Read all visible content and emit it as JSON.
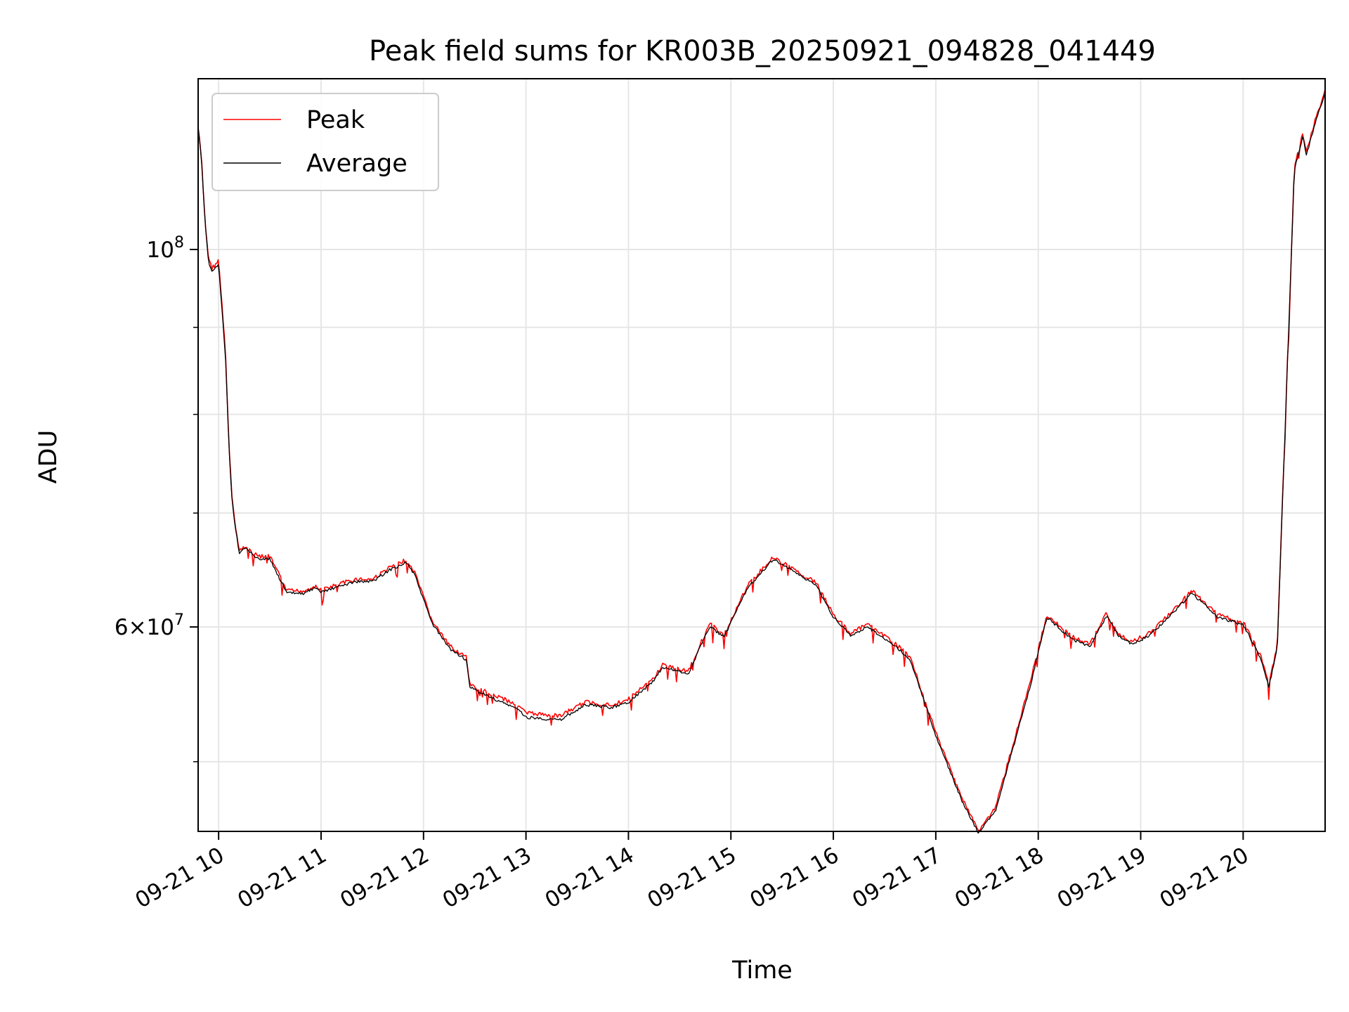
{
  "chart_data": {
    "type": "line",
    "title": "Peak field sums for KR003B_20250921_094828_041449",
    "xlabel": "Time",
    "ylabel": "ADU",
    "y_scale": "log",
    "ylim": [
      45500000,
      126000000
    ],
    "xlim": [
      "2025-09-21 09:48",
      "2025-09-21 20:48"
    ],
    "grid": true,
    "legend_position": "upper-left",
    "x_tick_labels": [
      "09-21 10",
      "09-21 11",
      "09-21 12",
      "09-21 13",
      "09-21 14",
      "09-21 15",
      "09-21 16",
      "09-21 17",
      "09-21 18",
      "09-21 19",
      "09-21 20"
    ],
    "x_ticks": [
      "2025-09-21 10:00",
      "2025-09-21 11:00",
      "2025-09-21 12:00",
      "2025-09-21 13:00",
      "2025-09-21 14:00",
      "2025-09-21 15:00",
      "2025-09-21 16:00",
      "2025-09-21 17:00",
      "2025-09-21 18:00",
      "2025-09-21 19:00",
      "2025-09-21 20:00"
    ],
    "y_major_ticks": [
      {
        "value": 100000000,
        "base": "10",
        "exp": "8"
      },
      {
        "value": 60000000,
        "mant": "6",
        "base": "10",
        "exp": "7"
      }
    ],
    "y_minor_ticks": [
      50000000,
      70000000,
      80000000,
      90000000
    ],
    "series": [
      {
        "name": "Peak",
        "color": "#ff0000",
        "x": [
          "2025-09-21 09:48",
          "2025-09-21 09:50",
          "2025-09-21 09:52",
          "2025-09-21 09:54",
          "2025-09-21 09:56",
          "2025-09-21 10:00",
          "2025-09-21 10:04",
          "2025-09-21 10:06",
          "2025-09-21 10:08",
          "2025-09-21 10:12",
          "2025-09-21 10:16",
          "2025-09-21 10:20",
          "2025-09-21 10:24",
          "2025-09-21 10:30",
          "2025-09-21 10:40",
          "2025-09-21 10:50",
          "2025-09-21 10:56",
          "2025-09-21 11:00",
          "2025-09-21 11:20",
          "2025-09-21 11:30",
          "2025-09-21 11:40",
          "2025-09-21 11:50",
          "2025-09-21 11:55",
          "2025-09-21 12:05",
          "2025-09-21 12:15",
          "2025-09-21 12:25",
          "2025-09-21 12:27",
          "2025-09-21 12:40",
          "2025-09-21 12:55",
          "2025-09-21 13:00",
          "2025-09-21 13:20",
          "2025-09-21 13:35",
          "2025-09-21 13:50",
          "2025-09-21 14:00",
          "2025-09-21 14:15",
          "2025-09-21 14:20",
          "2025-09-21 14:35",
          "2025-09-21 14:45",
          "2025-09-21 14:48",
          "2025-09-21 14:56",
          "2025-09-21 15:10",
          "2025-09-21 15:25",
          "2025-09-21 15:35",
          "2025-09-21 15:50",
          "2025-09-21 16:00",
          "2025-09-21 16:10",
          "2025-09-21 16:20",
          "2025-09-21 16:35",
          "2025-09-21 16:45",
          "2025-09-21 17:00",
          "2025-09-21 17:15",
          "2025-09-21 17:25",
          "2025-09-21 17:35",
          "2025-09-21 17:55",
          "2025-09-21 18:05",
          "2025-09-21 18:20",
          "2025-09-21 18:30",
          "2025-09-21 18:40",
          "2025-09-21 18:47",
          "2025-09-21 18:55",
          "2025-09-21 19:05",
          "2025-09-21 19:15",
          "2025-09-21 19:30",
          "2025-09-21 19:45",
          "2025-09-21 20:00",
          "2025-09-21 20:10",
          "2025-09-21 20:15",
          "2025-09-21 20:20",
          "2025-09-21 20:30",
          "2025-09-21 20:35",
          "2025-09-21 20:37",
          "2025-09-21 20:42",
          "2025-09-21 20:48"
        ],
        "y": [
          118000000,
          113000000,
          104000000,
          99000000,
          97500000,
          98500000,
          87000000,
          77000000,
          71000000,
          66500000,
          67000000,
          66300000,
          66000000,
          66000000,
          63000000,
          63000000,
          63400000,
          63100000,
          64000000,
          64000000,
          65000000,
          65700000,
          64500000,
          60500000,
          58500000,
          57600000,
          55500000,
          54800000,
          54000000,
          53400000,
          53200000,
          54200000,
          54000000,
          54400000,
          56000000,
          57000000,
          56500000,
          59500000,
          60200000,
          59400000,
          63500000,
          66000000,
          65000000,
          63700000,
          61000000,
          59500000,
          60200000,
          58800000,
          57600000,
          52000000,
          47700000,
          45500000,
          47000000,
          55500000,
          61000000,
          59200000,
          58600000,
          61100000,
          59500000,
          58800000,
          59500000,
          60800000,
          63000000,
          61000000,
          60400000,
          57800000,
          55500000,
          58500000,
          112000000,
          117000000,
          114000000,
          119000000,
          124000000
        ]
      },
      {
        "name": "Average",
        "color": "#000000",
        "x": [
          "2025-09-21 09:48",
          "2025-09-21 09:50",
          "2025-09-21 09:52",
          "2025-09-21 09:54",
          "2025-09-21 09:56",
          "2025-09-21 10:00",
          "2025-09-21 10:04",
          "2025-09-21 10:06",
          "2025-09-21 10:08",
          "2025-09-21 10:12",
          "2025-09-21 10:16",
          "2025-09-21 10:20",
          "2025-09-21 10:24",
          "2025-09-21 10:30",
          "2025-09-21 10:40",
          "2025-09-21 10:50",
          "2025-09-21 10:56",
          "2025-09-21 11:00",
          "2025-09-21 11:20",
          "2025-09-21 11:30",
          "2025-09-21 11:40",
          "2025-09-21 11:50",
          "2025-09-21 11:55",
          "2025-09-21 12:05",
          "2025-09-21 12:15",
          "2025-09-21 12:25",
          "2025-09-21 12:27",
          "2025-09-21 12:40",
          "2025-09-21 12:55",
          "2025-09-21 13:00",
          "2025-09-21 13:20",
          "2025-09-21 13:35",
          "2025-09-21 13:50",
          "2025-09-21 14:00",
          "2025-09-21 14:15",
          "2025-09-21 14:20",
          "2025-09-21 14:35",
          "2025-09-21 14:45",
          "2025-09-21 14:48",
          "2025-09-21 14:56",
          "2025-09-21 15:10",
          "2025-09-21 15:25",
          "2025-09-21 15:35",
          "2025-09-21 15:50",
          "2025-09-21 16:00",
          "2025-09-21 16:10",
          "2025-09-21 16:20",
          "2025-09-21 16:35",
          "2025-09-21 16:45",
          "2025-09-21 17:00",
          "2025-09-21 17:15",
          "2025-09-21 17:25",
          "2025-09-21 17:35",
          "2025-09-21 17:55",
          "2025-09-21 18:05",
          "2025-09-21 18:20",
          "2025-09-21 18:30",
          "2025-09-21 18:40",
          "2025-09-21 18:47",
          "2025-09-21 18:55",
          "2025-09-21 19:05",
          "2025-09-21 19:15",
          "2025-09-21 19:30",
          "2025-09-21 19:45",
          "2025-09-21 20:00",
          "2025-09-21 20:10",
          "2025-09-21 20:15",
          "2025-09-21 20:20",
          "2025-09-21 20:30",
          "2025-09-21 20:35",
          "2025-09-21 20:37",
          "2025-09-21 20:42",
          "2025-09-21 20:48"
        ],
        "y": [
          118000000,
          113000000,
          104000000,
          98500000,
          97000000,
          98000000,
          86500000,
          76800000,
          70800000,
          66300000,
          66800000,
          66100000,
          65800000,
          65800000,
          62800000,
          62800000,
          63200000,
          62900000,
          63800000,
          63800000,
          64800000,
          65500000,
          64300000,
          60300000,
          58300000,
          57400000,
          55300000,
          54500000,
          53700000,
          53100000,
          52900000,
          54000000,
          53800000,
          54200000,
          55800000,
          56800000,
          56300000,
          59300000,
          60000000,
          59200000,
          63300000,
          65800000,
          64800000,
          63500000,
          60800000,
          59300000,
          60000000,
          58600000,
          57400000,
          51800000,
          47500000,
          45400000,
          46800000,
          55200000,
          60800000,
          59000000,
          58400000,
          60900000,
          59300000,
          58600000,
          59300000,
          60600000,
          62800000,
          60800000,
          60200000,
          57600000,
          55300000,
          58300000,
          111500000,
          116500000,
          113500000,
          118500000,
          123500000
        ]
      }
    ]
  }
}
